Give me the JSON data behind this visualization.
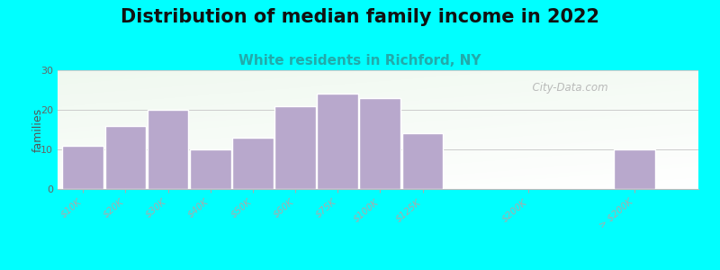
{
  "title": "Distribution of median family income in 2022",
  "subtitle": "White residents in Richford, NY",
  "ylabel": "families",
  "background_color": "#00FFFF",
  "bar_color": "#b8a8cc",
  "bar_edge_color": "#ffffff",
  "categories": [
    "$10K",
    "$20K",
    "$30K",
    "$40K",
    "$50K",
    "$60K",
    "$75K",
    "$100K",
    "$125K",
    "$200K",
    "> $200K"
  ],
  "values": [
    11,
    16,
    20,
    10,
    13,
    21,
    24,
    23,
    14,
    0,
    10
  ],
  "bar_positions": [
    0,
    1,
    2,
    3,
    4,
    5,
    6,
    7,
    8,
    10.5,
    13
  ],
  "ylim": [
    0,
    30
  ],
  "yticks": [
    0,
    10,
    20,
    30
  ],
  "title_fontsize": 15,
  "subtitle_fontsize": 11,
  "subtitle_color": "#22aaaa",
  "watermark_text": "  City-Data.com",
  "bar_width": 0.97
}
